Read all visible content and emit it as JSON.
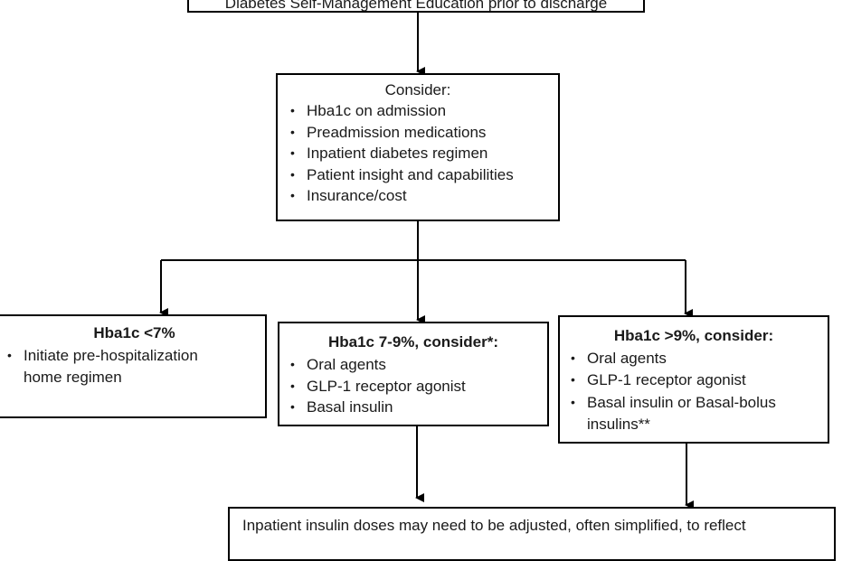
{
  "top_box": {
    "text": "Diabetes Self-Management Education prior to discharge"
  },
  "consider_box": {
    "heading": "Consider:",
    "items": [
      "Hba1c on admission",
      "Preadmission medications",
      "Inpatient diabetes regimen",
      "Patient insight and capabilities",
      "Insurance/cost"
    ]
  },
  "left_box": {
    "heading": "Hba1c <7%",
    "items": [
      "Initiate pre-hospitalization home regimen"
    ]
  },
  "middle_box": {
    "heading": "Hba1c 7-9%, consider*:",
    "items": [
      "Oral agents",
      "GLP-1 receptor agonist",
      "Basal insulin"
    ]
  },
  "right_box": {
    "heading": "Hba1c >9%, consider:",
    "items": [
      "Oral agents",
      "GLP-1 receptor agonist",
      "Basal insulin or Basal-bolus insulins**"
    ]
  },
  "bottom_box": {
    "text": "Inpatient insulin doses may need to be adjusted, often simplified, to reflect"
  }
}
